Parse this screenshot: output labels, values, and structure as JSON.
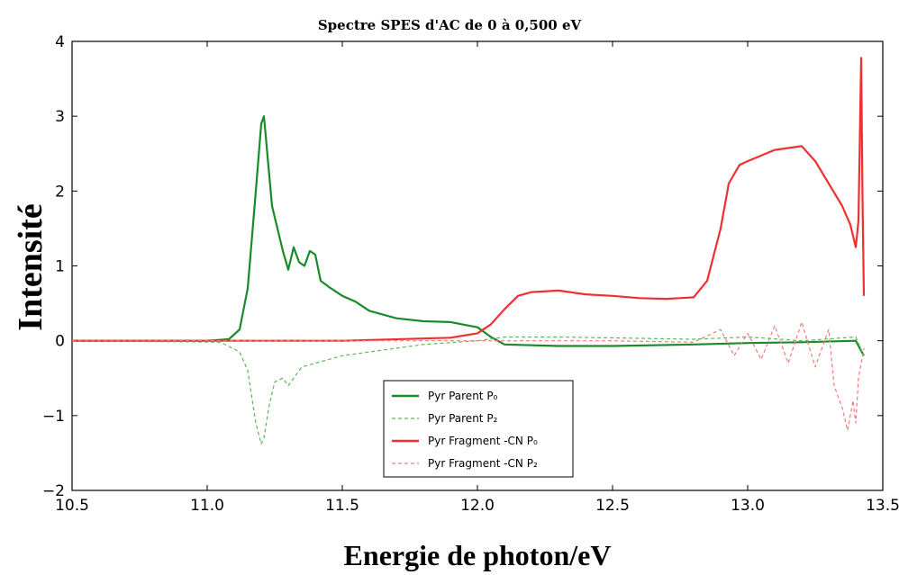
{
  "chart_data": {
    "type": "line",
    "title": "Spectre SPES d'AC de 0 à 0,500 eV",
    "xlabel": "Energie de photon/eV",
    "ylabel": "Intensité",
    "xlim": [
      10.5,
      13.5
    ],
    "ylim": [
      -2,
      4
    ],
    "xticks": [
      10.5,
      11.0,
      11.5,
      12.0,
      12.5,
      13.0,
      13.5
    ],
    "xtick_labels": [
      "10.5",
      "11.0",
      "11.5",
      "12.0",
      "12.5",
      "13.0",
      "13.5"
    ],
    "yticks": [
      -2,
      -1,
      0,
      1,
      2,
      3,
      4
    ],
    "ytick_labels": [
      "−2",
      "−1",
      "0",
      "1",
      "2",
      "3",
      "4"
    ],
    "grid": false,
    "legend_position": "bottom-center",
    "series": [
      {
        "name": "Pyr Parent P₀",
        "color": "#1a8a2a",
        "style": "solid",
        "x": [
          10.5,
          11.0,
          11.08,
          11.12,
          11.15,
          11.18,
          11.2,
          11.21,
          11.22,
          11.24,
          11.26,
          11.28,
          11.3,
          11.32,
          11.34,
          11.36,
          11.38,
          11.4,
          11.42,
          11.45,
          11.5,
          11.55,
          11.6,
          11.7,
          11.8,
          11.9,
          12.0,
          12.05,
          12.1,
          12.3,
          12.5,
          12.8,
          13.0,
          13.2,
          13.4,
          13.43
        ],
        "y": [
          0,
          0,
          0.02,
          0.15,
          0.7,
          2.0,
          2.9,
          3.0,
          2.6,
          1.8,
          1.5,
          1.2,
          0.95,
          1.25,
          1.05,
          1.0,
          1.2,
          1.15,
          0.8,
          0.72,
          0.6,
          0.52,
          0.4,
          0.3,
          0.26,
          0.25,
          0.18,
          0.05,
          -0.05,
          -0.07,
          -0.07,
          -0.05,
          -0.03,
          -0.02,
          0.0,
          -0.2
        ]
      },
      {
        "name": "Pyr Parent P₂",
        "color": "#5cb85c",
        "style": "dashed",
        "x": [
          10.5,
          11.05,
          11.12,
          11.15,
          11.18,
          11.2,
          11.21,
          11.23,
          11.25,
          11.28,
          11.3,
          11.35,
          11.4,
          11.5,
          11.6,
          11.8,
          12.0,
          12.1,
          12.3,
          12.8,
          13.0,
          13.2,
          13.4,
          13.43
        ],
        "y": [
          0,
          -0.02,
          -0.15,
          -0.4,
          -1.1,
          -1.38,
          -1.3,
          -0.85,
          -0.55,
          -0.5,
          -0.6,
          -0.35,
          -0.3,
          -0.2,
          -0.15,
          -0.05,
          0.0,
          0.05,
          0.05,
          0.02,
          0.05,
          0.0,
          0.05,
          -0.2
        ]
      },
      {
        "name": "Pyr Fragment -CN P₀",
        "color": "#f03030",
        "style": "solid",
        "x": [
          10.5,
          11.5,
          11.9,
          12.0,
          12.05,
          12.1,
          12.15,
          12.2,
          12.3,
          12.4,
          12.5,
          12.6,
          12.7,
          12.8,
          12.85,
          12.9,
          12.93,
          12.97,
          13.0,
          13.1,
          13.2,
          13.25,
          13.3,
          13.35,
          13.38,
          13.4,
          13.41,
          13.42,
          13.425,
          13.43
        ],
        "y": [
          0,
          0,
          0.04,
          0.1,
          0.22,
          0.42,
          0.6,
          0.65,
          0.67,
          0.62,
          0.6,
          0.57,
          0.56,
          0.58,
          0.8,
          1.5,
          2.1,
          2.35,
          2.4,
          2.55,
          2.6,
          2.4,
          2.1,
          1.8,
          1.55,
          1.25,
          1.6,
          3.78,
          1.9,
          0.6
        ]
      },
      {
        "name": "Pyr Fragment -CN P₂",
        "color": "#f47a7a",
        "style": "dashed",
        "x": [
          10.5,
          12.0,
          12.5,
          12.8,
          12.9,
          12.95,
          13.0,
          13.05,
          13.1,
          13.15,
          13.2,
          13.25,
          13.3,
          13.32,
          13.35,
          13.37,
          13.39,
          13.4,
          13.41,
          13.42,
          13.43
        ],
        "y": [
          0,
          0,
          0.0,
          -0.02,
          0.15,
          -0.2,
          0.1,
          -0.25,
          0.2,
          -0.3,
          0.25,
          -0.35,
          0.15,
          -0.6,
          -0.9,
          -1.2,
          -0.8,
          -1.1,
          -0.5,
          -0.3,
          -0.1
        ]
      }
    ]
  }
}
